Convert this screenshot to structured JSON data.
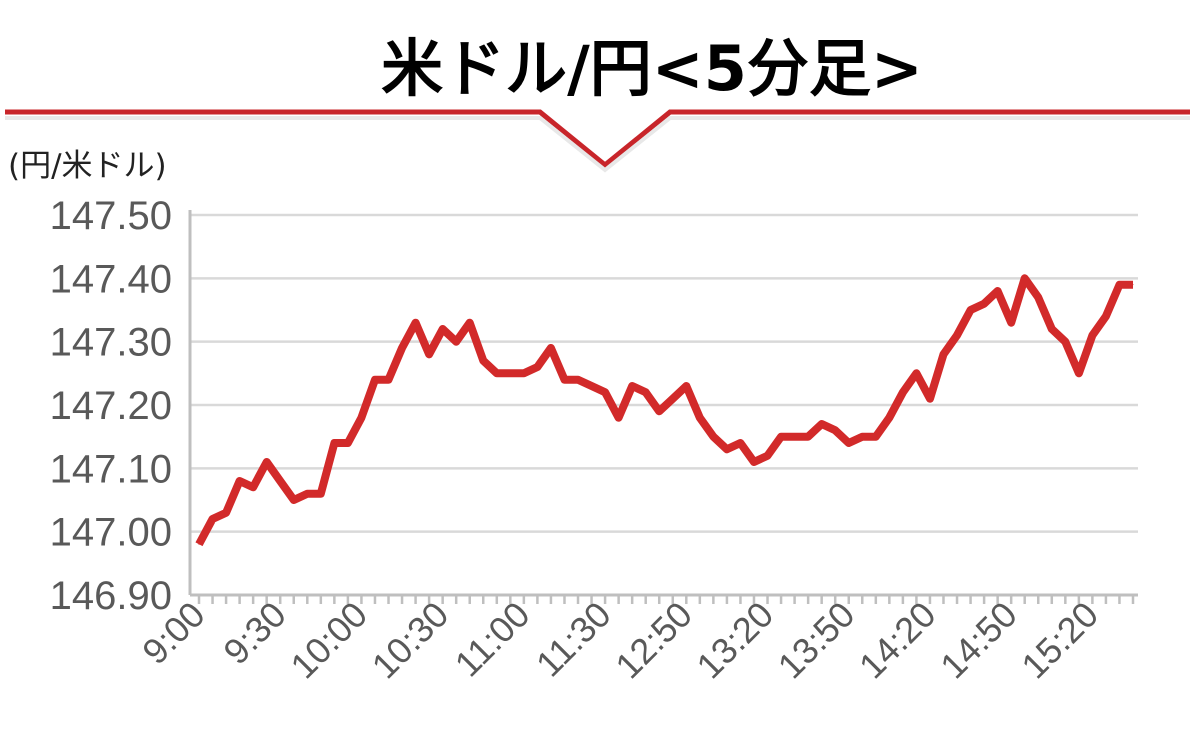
{
  "title": "米ドル/円<5分足>",
  "colors": {
    "series": "#d22a2a",
    "grid": "#d9d9d9",
    "axis": "#bfbfbf",
    "banner_line": "#c8252a",
    "tick_text": "#595959"
  },
  "chart_data": {
    "type": "line",
    "title": "米ドル/円<5分足>",
    "ylabel": "(円/米ドル)",
    "xlabel": "",
    "ylim": [
      146.9,
      147.5
    ],
    "yticks": [
      "147.50",
      "147.40",
      "147.30",
      "147.20",
      "147.10",
      "147.00",
      "146.90"
    ],
    "ytick_values": [
      147.5,
      147.4,
      147.3,
      147.2,
      147.1,
      147.0,
      146.9
    ],
    "grid": true,
    "legend": "none",
    "xtick_labels": [
      {
        "label": "9:00",
        "index": 0
      },
      {
        "label": "9:30",
        "index": 6
      },
      {
        "label": "10:00",
        "index": 12
      },
      {
        "label": "10:30",
        "index": 18
      },
      {
        "label": "11:00",
        "index": 24
      },
      {
        "label": "11:30",
        "index": 30
      },
      {
        "label": "12:50",
        "index": 36
      },
      {
        "label": "13:20",
        "index": 42
      },
      {
        "label": "13:50",
        "index": 48
      },
      {
        "label": "14:20",
        "index": 54
      },
      {
        "label": "14:50",
        "index": 60
      },
      {
        "label": "15:20",
        "index": 66
      }
    ],
    "series": [
      {
        "values": [
          146.98,
          147.02,
          147.03,
          147.08,
          147.07,
          147.11,
          147.08,
          147.05,
          147.06,
          147.06,
          147.14,
          147.14,
          147.18,
          147.24,
          147.24,
          147.29,
          147.33,
          147.28,
          147.32,
          147.3,
          147.33,
          147.27,
          147.25,
          147.25,
          147.25,
          147.26,
          147.29,
          147.24,
          147.24,
          147.23,
          147.22,
          147.18,
          147.23,
          147.22,
          147.19,
          147.21,
          147.23,
          147.18,
          147.15,
          147.13,
          147.14,
          147.11,
          147.12,
          147.15,
          147.15,
          147.15,
          147.17,
          147.16,
          147.14,
          147.15,
          147.15,
          147.18,
          147.22,
          147.25,
          147.21,
          147.28,
          147.31,
          147.35,
          147.36,
          147.38,
          147.33,
          147.4,
          147.37,
          147.32,
          147.3,
          147.25,
          147.31,
          147.34,
          147.39,
          147.39
        ]
      }
    ]
  }
}
